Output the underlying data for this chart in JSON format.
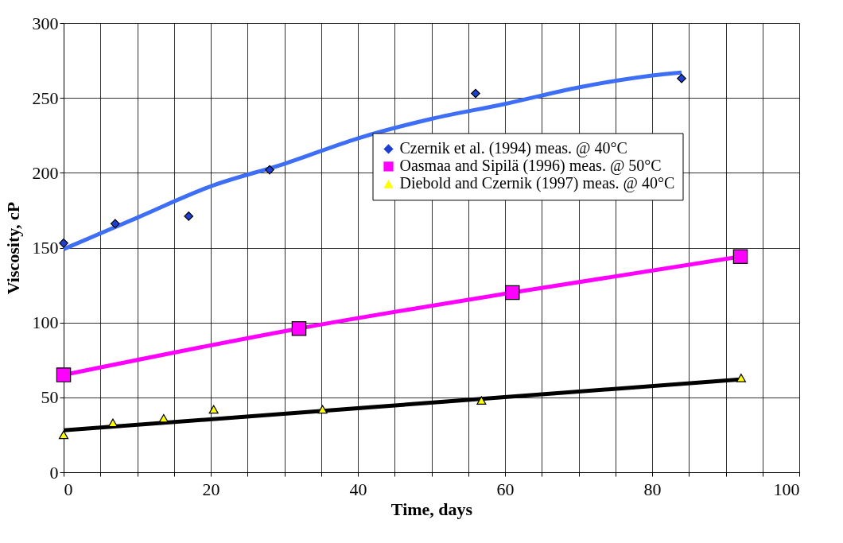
{
  "chart_data": {
    "type": "scatter",
    "xlabel": "Time, days",
    "ylabel": "Viscosity, cP",
    "xlim": [
      0,
      100
    ],
    "ylim": [
      0,
      300
    ],
    "xticks": [
      0,
      {
        "value": 5,
        "label": null
      },
      {
        "value": 10,
        "label": null
      },
      {
        "value": 15,
        "label": null
      },
      20,
      {
        "value": 25,
        "label": null
      },
      {
        "value": 30,
        "label": null
      },
      {
        "value": 35,
        "label": null
      },
      40,
      {
        "value": 45,
        "label": null
      },
      {
        "value": 50,
        "label": null
      },
      {
        "value": 55,
        "label": null
      },
      60,
      {
        "value": 65,
        "label": null
      },
      {
        "value": 70,
        "label": null
      },
      {
        "value": 75,
        "label": null
      },
      80,
      {
        "value": 85,
        "label": null
      },
      {
        "value": 90,
        "label": null
      },
      {
        "value": 95,
        "label": null
      },
      100
    ],
    "yticks": [
      0,
      50,
      100,
      150,
      200,
      250,
      300
    ],
    "grid": true,
    "legend": "top right",
    "series": [
      {
        "name": "Czernik et al. (1994) meas. @ 40°C",
        "marker": "diamond",
        "color": "#1f3fd0",
        "x": [
          0,
          7,
          17,
          28,
          56,
          84
        ],
        "values": [
          153,
          166,
          171,
          202,
          253,
          263
        ]
      },
      {
        "type": "line",
        "marker": "none",
        "color": "#3d6ef5",
        "x": [
          0,
          10,
          20,
          30,
          40,
          50,
          60,
          70,
          80,
          84
        ],
        "values": [
          149,
          170,
          191,
          206,
          223,
          236,
          246,
          257,
          265,
          267
        ]
      },
      {
        "name": "Oasmaa and Sipilä (1996) meas. @ 50°C",
        "type": "line",
        "marker": "square",
        "color": "#ff00ff",
        "x": [
          0,
          32,
          61,
          92
        ],
        "values": [
          65,
          96,
          120,
          144
        ]
      },
      {
        "name": "Diebold and Czernik (1997) meas. @ 40°C",
        "marker": "triangle",
        "color": "#ffff00",
        "x": [
          0,
          6.7,
          13.6,
          20.4,
          35.2,
          56.8,
          92.1
        ],
        "values": [
          25,
          33,
          36,
          42,
          42,
          48,
          63
        ]
      },
      {
        "type": "line",
        "marker": "none",
        "color": "#000000",
        "x": [
          0,
          92
        ],
        "values": [
          28,
          62
        ]
      }
    ]
  }
}
